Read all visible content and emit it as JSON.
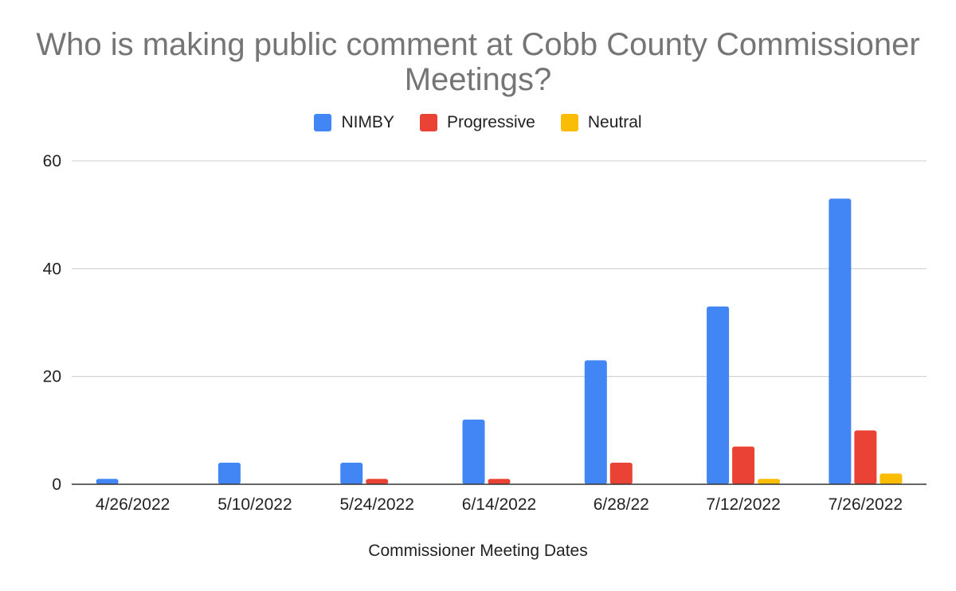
{
  "chart_data": {
    "type": "bar",
    "title": "Who is making public comment at Cobb County Commissioner Meetings?",
    "title_lines": [
      "Who is making public comment at Cobb County Commissioner",
      "Meetings?"
    ],
    "xlabel": "Commissioner Meeting Dates",
    "ylabel": "",
    "ylim": [
      0,
      60
    ],
    "yticks": [
      "0",
      "20",
      "40",
      "60"
    ],
    "grid": true,
    "legend_position": "top",
    "categories": [
      "4/26/2022",
      "5/10/2022",
      "5/24/2022",
      "6/14/2022",
      "6/28/22",
      "7/12/2022",
      "7/26/2022"
    ],
    "series": [
      {
        "name": "NIMBY",
        "color": "#4285f4",
        "values": [
          1,
          4,
          4,
          12,
          23,
          33,
          53
        ]
      },
      {
        "name": "Progressive",
        "color": "#ea4335",
        "values": [
          0,
          0,
          1,
          1,
          4,
          7,
          10
        ]
      },
      {
        "name": "Neutral",
        "color": "#fbbc04",
        "values": [
          0,
          0,
          0,
          0,
          0,
          1,
          2
        ]
      }
    ]
  }
}
